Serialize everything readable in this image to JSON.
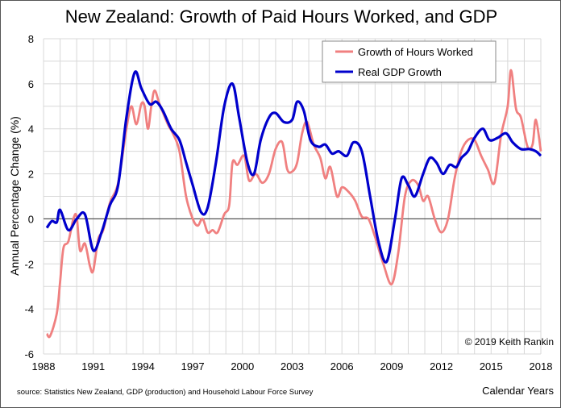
{
  "chart_data": {
    "type": "line",
    "title": "New Zealand: Growth of Paid Hours Worked, and GDP",
    "xlabel": "Calendar Years",
    "ylabel": "Annual Percentage Change (%)",
    "xlim": [
      1988,
      2018
    ],
    "ylim": [
      -6,
      8
    ],
    "x_ticks": [
      "1988",
      "1991",
      "1994",
      "1997",
      "2000",
      "2003",
      "2006",
      "2009",
      "2012",
      "2015",
      "2018"
    ],
    "y_ticks": [
      "8",
      "6",
      "4",
      "2",
      "0",
      "-2",
      "-4",
      "-6"
    ],
    "grid": true,
    "legend_position": "top-right",
    "annotation": "© 2019 Keith Rankin",
    "source": "source: Statistics New Zealand, GDP (production) and Household Labour Force Survey",
    "series": [
      {
        "name": "Growth of Hours Worked",
        "color": "#f08080",
        "x": [
          1988.2,
          1988.4,
          1988.8,
          1989.0,
          1989.2,
          1989.5,
          1989.8,
          1990.0,
          1990.2,
          1990.5,
          1990.8,
          1991.0,
          1991.3,
          1991.6,
          1992.0,
          1992.5,
          1993.0,
          1993.3,
          1993.6,
          1993.9,
          1994.1,
          1994.3,
          1994.5,
          1994.7,
          1995.0,
          1995.5,
          1995.8,
          1996.2,
          1996.6,
          1997.0,
          1997.3,
          1997.6,
          1997.9,
          1998.2,
          1998.5,
          1998.9,
          1999.2,
          1999.4,
          1999.7,
          2000.1,
          2000.4,
          2000.8,
          2001.2,
          2001.6,
          2002.0,
          2002.4,
          2002.7,
          2003.0,
          2003.3,
          2003.6,
          2003.9,
          2004.3,
          2004.7,
          2005.0,
          2005.3,
          2005.7,
          2006.0,
          2006.4,
          2006.8,
          2007.2,
          2007.6,
          2008.0,
          2008.5,
          2009.0,
          2009.4,
          2009.8,
          2010.2,
          2010.6,
          2010.9,
          2011.2,
          2011.6,
          2012.0,
          2012.4,
          2012.8,
          2013.2,
          2013.6,
          2014.0,
          2014.4,
          2014.8,
          2015.2,
          2015.6,
          2016.0,
          2016.2,
          2016.5,
          2016.8,
          2017.2,
          2017.5,
          2017.7,
          2018.0
        ],
        "y": [
          -5.1,
          -5.2,
          -4.2,
          -2.8,
          -1.3,
          -1.0,
          0.0,
          0.1,
          -1.4,
          -1.1,
          -2.1,
          -2.3,
          -0.9,
          -0.5,
          0.7,
          1.6,
          4.0,
          5.0,
          4.2,
          5.1,
          5.0,
          4.0,
          5.0,
          5.7,
          5.1,
          4.2,
          3.8,
          3.0,
          1.0,
          0.0,
          -0.3,
          0.0,
          -0.6,
          -0.5,
          -0.6,
          0.2,
          0.6,
          2.5,
          2.4,
          2.8,
          1.7,
          2.0,
          1.6,
          2.0,
          3.1,
          3.4,
          2.2,
          2.1,
          2.5,
          3.8,
          4.3,
          3.3,
          2.7,
          1.8,
          2.3,
          1.0,
          1.4,
          1.2,
          0.8,
          0.1,
          0.0,
          -0.8,
          -2.0,
          -2.9,
          -1.5,
          1.0,
          1.7,
          1.5,
          0.8,
          1.0,
          0.0,
          -0.6,
          0.0,
          1.8,
          3.0,
          3.5,
          3.5,
          2.8,
          2.2,
          1.6,
          3.7,
          5.0,
          6.6,
          4.9,
          4.5,
          3.2,
          3.3,
          4.4,
          3.0
        ]
      },
      {
        "name": "Real GDP Growth",
        "color": "#0000cc",
        "x": [
          1988.2,
          1988.5,
          1988.8,
          1989.0,
          1989.5,
          1990.0,
          1990.5,
          1991.0,
          1991.5,
          1992.0,
          1992.5,
          1993.0,
          1993.5,
          1993.9,
          1994.4,
          1994.8,
          1995.2,
          1995.7,
          1996.2,
          1996.6,
          1997.0,
          1997.5,
          1997.9,
          1998.4,
          1998.9,
          1999.4,
          1999.8,
          2000.3,
          2000.7,
          2001.1,
          2001.6,
          2002.0,
          2002.5,
          2003.0,
          2003.3,
          2003.7,
          2004.1,
          2004.6,
          2005.0,
          2005.4,
          2005.8,
          2006.3,
          2006.7,
          2007.2,
          2007.7,
          2008.2,
          2008.7,
          2009.2,
          2009.6,
          2010.0,
          2010.4,
          2010.9,
          2011.3,
          2011.7,
          2012.1,
          2012.5,
          2012.9,
          2013.2,
          2013.6,
          2014.0,
          2014.5,
          2014.9,
          2015.4,
          2015.9,
          2016.3,
          2016.8,
          2017.3,
          2017.7,
          2018.0
        ],
        "y": [
          -0.4,
          -0.1,
          -0.15,
          0.4,
          -0.5,
          0.0,
          0.2,
          -1.4,
          -0.6,
          0.6,
          1.5,
          4.5,
          6.5,
          5.8,
          5.1,
          5.2,
          4.8,
          4.0,
          3.5,
          2.5,
          1.5,
          0.3,
          0.5,
          2.5,
          5.0,
          6.0,
          4.5,
          2.5,
          2.0,
          3.5,
          4.5,
          4.7,
          4.3,
          4.4,
          5.2,
          4.8,
          3.5,
          3.2,
          3.3,
          2.9,
          3.0,
          2.8,
          3.4,
          3.0,
          1.0,
          -1.0,
          -1.9,
          0.0,
          1.8,
          1.5,
          1.0,
          2.0,
          2.7,
          2.5,
          2.0,
          2.4,
          2.3,
          2.7,
          3.0,
          3.6,
          4.0,
          3.5,
          3.6,
          3.8,
          3.4,
          3.1,
          3.1,
          3.0,
          2.8
        ]
      }
    ]
  }
}
